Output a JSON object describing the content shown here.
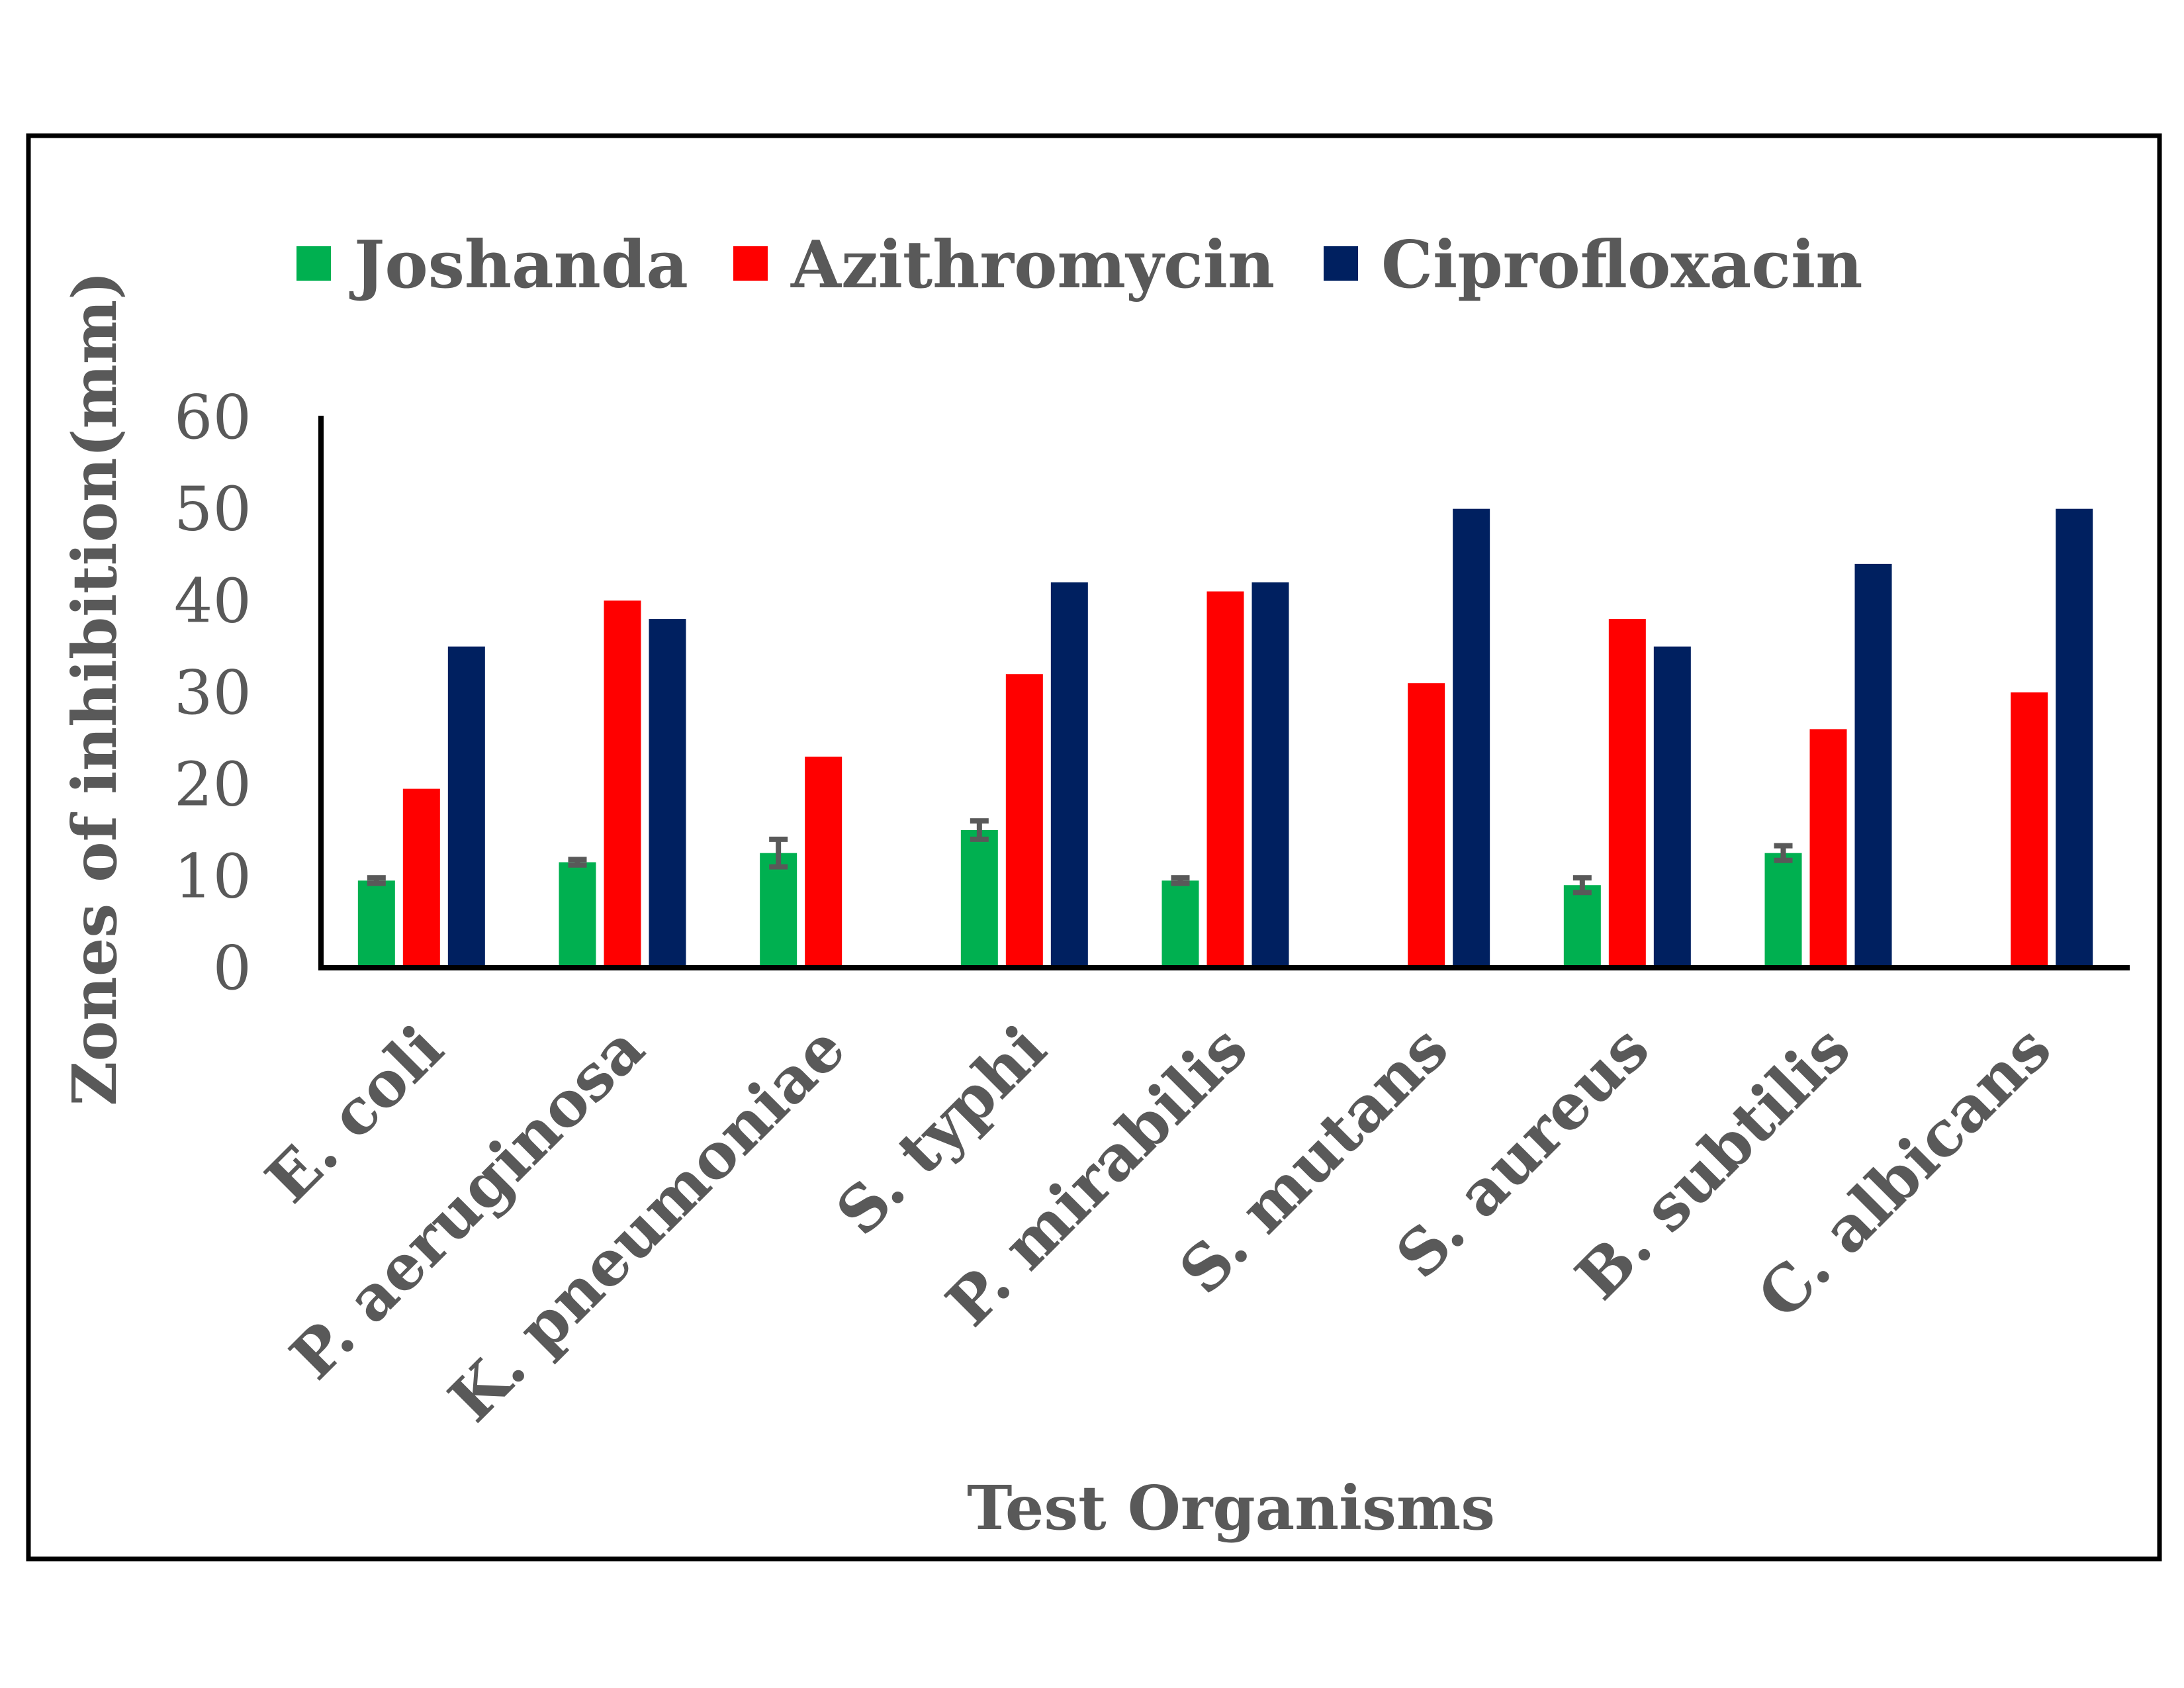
{
  "chart_data": {
    "type": "bar",
    "xlabel": "Test Organisms",
    "ylabel": "Zones of inhibition(mm)",
    "ylim": [
      0,
      60
    ],
    "yticks": [
      0,
      10,
      20,
      30,
      40,
      50,
      60
    ],
    "grid": false,
    "legend_position": "top",
    "categories": [
      "E. coli",
      "P. aeruginosa",
      "K. pneumoniae",
      "S. typhi",
      "P. mirabilis",
      "S. mutans",
      "S. aureus",
      "B. subtilis",
      "C. albicans"
    ],
    "series": [
      {
        "name": "Joshanda",
        "color": "#00b050",
        "values": [
          9.5,
          11.5,
          12.5,
          15,
          9.5,
          0,
          9,
          12.5,
          0
        ],
        "errors": [
          0.3,
          0.3,
          1.5,
          1,
          0.3,
          0,
          0.8,
          0.8,
          0
        ]
      },
      {
        "name": "Azithromycin",
        "color": "#ff0000",
        "values": [
          19.5,
          40,
          23,
          32,
          41,
          31,
          38,
          26,
          30
        ],
        "errors": [
          0,
          0,
          0,
          0,
          0,
          0,
          0,
          0,
          0
        ]
      },
      {
        "name": "Ciprofloxacin",
        "color": "#002060",
        "values": [
          35,
          38,
          0,
          42,
          42,
          50,
          35,
          44,
          50
        ],
        "errors": [
          0,
          0,
          0,
          0,
          0,
          0,
          0,
          0,
          0
        ]
      }
    ]
  }
}
